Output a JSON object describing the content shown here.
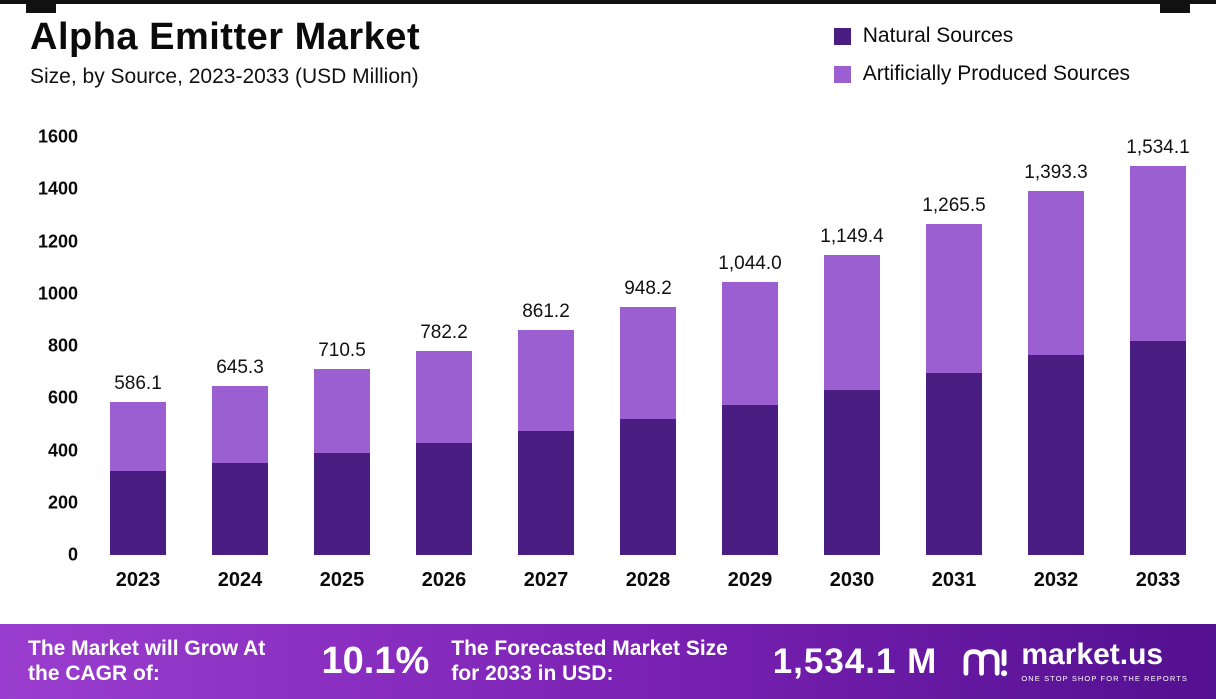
{
  "header": {
    "title": "Alpha Emitter Market",
    "subtitle": "Size, by Source, 2023-2033 (USD Million)"
  },
  "legend": [
    {
      "label": "Natural Sources",
      "color": "#4a1d82"
    },
    {
      "label": "Artificially Produced Sources",
      "color": "#9c5fd2"
    }
  ],
  "chart_data": {
    "type": "bar",
    "stacked": true,
    "title": "Alpha Emitter Market Size, by Source, 2023-2033 (USD Million)",
    "xlabel": "",
    "ylabel": "",
    "ylim": [
      0,
      1600
    ],
    "yticks": [
      0,
      200,
      400,
      600,
      800,
      1000,
      1200,
      1400,
      1600
    ],
    "grid": false,
    "legend_position": "top-right",
    "categories": [
      "2023",
      "2024",
      "2025",
      "2026",
      "2027",
      "2028",
      "2029",
      "2030",
      "2031",
      "2032",
      "2033"
    ],
    "series": [
      {
        "name": "Natural Sources",
        "color": "#4a1d82",
        "values": [
          320,
          352,
          390,
          430,
          473,
          521,
          573,
          631,
          695,
          766,
          845
        ]
      },
      {
        "name": "Artificially Produced Sources",
        "color": "#9c5fd2",
        "values": [
          266.1,
          293.3,
          320.5,
          352.2,
          388.2,
          427.2,
          471.0,
          518.4,
          570.5,
          627.3,
          689.1
        ]
      }
    ],
    "totals": [
      586.1,
      645.3,
      710.5,
      782.2,
      861.2,
      948.2,
      1044.0,
      1149.4,
      1265.5,
      1393.3,
      1534.1
    ],
    "total_labels": [
      "586.1",
      "645.3",
      "710.5",
      "782.2",
      "861.2",
      "948.2",
      "1,044.0",
      "1,149.4",
      "1,265.5",
      "1,393.3",
      "1,534.1"
    ]
  },
  "banner": {
    "cagr_label": "The Market will Grow At the CAGR of:",
    "cagr_value": "10.1%",
    "forecast_label": "The Forecasted Market Size for 2033 in USD:",
    "forecast_value": "1,534.1 M",
    "logo_text": "market.us",
    "logo_tagline": "ONE STOP SHOP FOR THE REPORTS",
    "gradient_left": "#9b3ecf",
    "gradient_mid": "#7b22b4",
    "gradient_right": "#531090"
  }
}
